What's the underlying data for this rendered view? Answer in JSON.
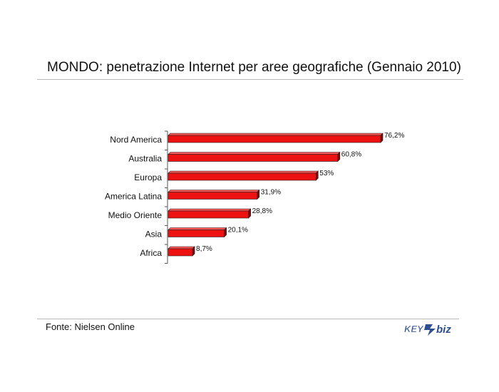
{
  "title": "MONDO: penetrazione Internet per aree geografiche (Gennaio 2010)",
  "source": "Fonte: Nielsen Online",
  "logo": {
    "text_left": "KEY",
    "text_right": "biz",
    "color": "#2d4f8f"
  },
  "colors": {
    "bar": "#ee1111",
    "bar_top": "#ff5555",
    "bar_side": "#8a0000",
    "rule": "#b9b9b9"
  },
  "chart_data": {
    "type": "bar",
    "orientation": "horizontal",
    "categories": [
      "Nord America",
      "Australia",
      "Europa",
      "America Latina",
      "Medio Oriente",
      "Asia",
      "Africa"
    ],
    "values": [
      76.2,
      60.8,
      53,
      31.9,
      28.8,
      20.1,
      8.7
    ],
    "value_labels": [
      "76,2%",
      "60,8%",
      "53%",
      "31,9%",
      "28,8%",
      "20,1%",
      "8,7%"
    ],
    "unit": "%",
    "xlim": [
      0,
      80
    ],
    "grid": false,
    "style": "3d"
  }
}
